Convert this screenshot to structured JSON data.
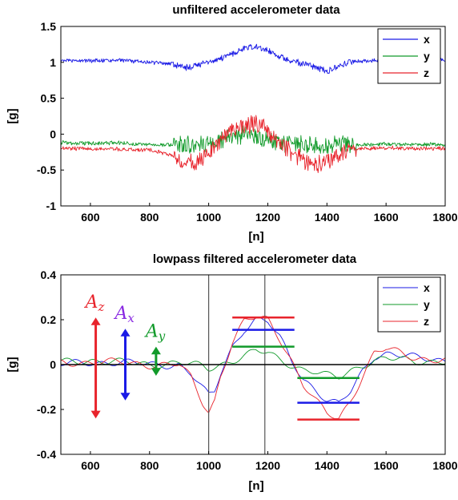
{
  "chart_data": [
    {
      "type": "line",
      "title": "unfiltered accelerometer data",
      "xlabel": "[n]",
      "ylabel": "[g]",
      "xlim": [
        500,
        1800
      ],
      "ylim": [
        -1,
        1.5
      ],
      "xticks": [
        "600",
        "800",
        "1000",
        "1200",
        "1400",
        "1600",
        "1800"
      ],
      "yticks": [
        "-1",
        "-0.5",
        "0",
        "0.5",
        "1",
        "1.5"
      ],
      "legend_position": "top-right",
      "noise": "high",
      "series": [
        {
          "name": "x",
          "color": "#1a1ae6",
          "x": [
            500,
            600,
            700,
            800,
            880,
            920,
            960,
            1000,
            1040,
            1080,
            1120,
            1160,
            1200,
            1240,
            1280,
            1320,
            1360,
            1400,
            1440,
            1480,
            1520,
            1600,
            1700,
            1800
          ],
          "y": [
            1.02,
            1.02,
            1.03,
            1.0,
            0.98,
            0.92,
            0.96,
            1.01,
            1.06,
            1.12,
            1.2,
            1.22,
            1.17,
            1.08,
            1.02,
            0.98,
            0.93,
            0.88,
            0.95,
            1.01,
            1.02,
            1.03,
            1.02,
            1.03
          ]
        },
        {
          "name": "y",
          "color": "#119a2a",
          "x": [
            500,
            600,
            700,
            800,
            880,
            920,
            960,
            1000,
            1040,
            1080,
            1120,
            1160,
            1200,
            1240,
            1280,
            1320,
            1360,
            1400,
            1440,
            1480,
            1520,
            1600,
            1700,
            1800
          ],
          "y": [
            -0.12,
            -0.13,
            -0.12,
            -0.15,
            -0.15,
            -0.15,
            -0.14,
            -0.14,
            -0.1,
            -0.05,
            0.0,
            -0.03,
            -0.08,
            -0.12,
            -0.13,
            -0.14,
            -0.16,
            -0.16,
            -0.14,
            -0.15,
            -0.15,
            -0.14,
            -0.14,
            -0.15
          ]
        },
        {
          "name": "z",
          "color": "#e8242c",
          "x": [
            500,
            600,
            700,
            800,
            880,
            920,
            960,
            1000,
            1040,
            1080,
            1120,
            1160,
            1200,
            1240,
            1280,
            1320,
            1360,
            1400,
            1440,
            1480,
            1520,
            1600,
            1700,
            1800
          ],
          "y": [
            -0.2,
            -0.2,
            -0.21,
            -0.22,
            -0.3,
            -0.42,
            -0.38,
            -0.25,
            -0.1,
            0.05,
            0.12,
            0.15,
            0.05,
            -0.12,
            -0.25,
            -0.38,
            -0.45,
            -0.38,
            -0.28,
            -0.22,
            -0.2,
            -0.19,
            -0.2,
            -0.2
          ]
        }
      ]
    },
    {
      "type": "line",
      "title": "lowpass filtered accelerometer data",
      "xlabel": "[n]",
      "ylabel": "[g]",
      "xlim": [
        500,
        1800
      ],
      "ylim": [
        -0.4,
        0.4
      ],
      "xticks": [
        "600",
        "800",
        "1000",
        "1200",
        "1400",
        "1600",
        "1800"
      ],
      "yticks": [
        "-0.4",
        "-0.2",
        "0",
        "0.2",
        "0.4"
      ],
      "legend_position": "top-right",
      "noise": "low",
      "series": [
        {
          "name": "x",
          "color": "#1a1ae6",
          "x": [
            500,
            600,
            700,
            800,
            900,
            940,
            980,
            1000,
            1020,
            1040,
            1080,
            1120,
            1160,
            1200,
            1240,
            1280,
            1320,
            1360,
            1400,
            1440,
            1480,
            1520,
            1560,
            1600,
            1700,
            1800
          ],
          "y": [
            0.0,
            0.01,
            0.01,
            0.0,
            0.0,
            -0.04,
            -0.11,
            -0.14,
            -0.12,
            -0.04,
            0.08,
            0.16,
            0.2,
            0.19,
            0.12,
            0.02,
            -0.06,
            -0.11,
            -0.16,
            -0.18,
            -0.12,
            -0.03,
            0.04,
            0.05,
            0.03,
            0.02
          ]
        },
        {
          "name": "y",
          "color": "#119a2a",
          "x": [
            500,
            600,
            700,
            800,
            900,
            940,
            980,
            1000,
            1020,
            1040,
            1080,
            1120,
            1160,
            1200,
            1240,
            1280,
            1320,
            1360,
            1400,
            1440,
            1480,
            1520,
            1560,
            1600,
            1700,
            1800
          ],
          "y": [
            0.01,
            0.02,
            0.01,
            0.0,
            0.01,
            0.0,
            -0.01,
            -0.02,
            -0.01,
            0.0,
            0.02,
            0.04,
            0.06,
            0.05,
            0.02,
            0.0,
            -0.02,
            -0.03,
            -0.05,
            -0.06,
            -0.03,
            0.0,
            0.02,
            0.03,
            0.01,
            0.02
          ]
        },
        {
          "name": "z",
          "color": "#e8242c",
          "x": [
            500,
            600,
            700,
            800,
            900,
            940,
            980,
            1000,
            1020,
            1040,
            1080,
            1120,
            1160,
            1200,
            1240,
            1280,
            1320,
            1360,
            1400,
            1440,
            1480,
            1520,
            1560,
            1600,
            1700,
            1800
          ],
          "y": [
            0.01,
            0.01,
            0.01,
            0.0,
            0.0,
            -0.06,
            -0.17,
            -0.21,
            -0.16,
            -0.05,
            0.1,
            0.19,
            0.21,
            0.2,
            0.12,
            0.02,
            -0.09,
            -0.16,
            -0.22,
            -0.24,
            -0.16,
            -0.05,
            0.05,
            0.07,
            0.03,
            0.02
          ]
        }
      ],
      "hlines": [
        {
          "y": 0,
          "x": [
            500,
            1800
          ],
          "color": "#000000"
        },
        {
          "y": 0.21,
          "x": [
            1080,
            1290
          ],
          "color": "#e8242c"
        },
        {
          "y": 0.155,
          "x": [
            1080,
            1290
          ],
          "color": "#1a1ae6"
        },
        {
          "y": 0.08,
          "x": [
            1080,
            1290
          ],
          "color": "#119a2a"
        },
        {
          "y": -0.06,
          "x": [
            1300,
            1510
          ],
          "color": "#119a2a"
        },
        {
          "y": -0.17,
          "x": [
            1300,
            1510
          ],
          "color": "#1a1ae6"
        },
        {
          "y": -0.245,
          "x": [
            1300,
            1510
          ],
          "color": "#e8242c"
        }
      ],
      "vlines": [
        {
          "x": 1000,
          "color": "#555555"
        },
        {
          "x": 1190,
          "color": "#555555"
        }
      ],
      "amplitude_arrows": [
        {
          "label": "A",
          "sub": "z",
          "color": "#e8242c",
          "x": 618,
          "y1": -0.24,
          "y2": 0.21
        },
        {
          "label": "A",
          "sub": "x",
          "color": "#1a1ae6",
          "x": 718,
          "y1": -0.16,
          "y2": 0.16,
          "label_color": "#8a2be2"
        },
        {
          "label": "A",
          "sub": "y",
          "color": "#119a2a",
          "x": 822,
          "y1": -0.05,
          "y2": 0.08
        }
      ]
    }
  ]
}
